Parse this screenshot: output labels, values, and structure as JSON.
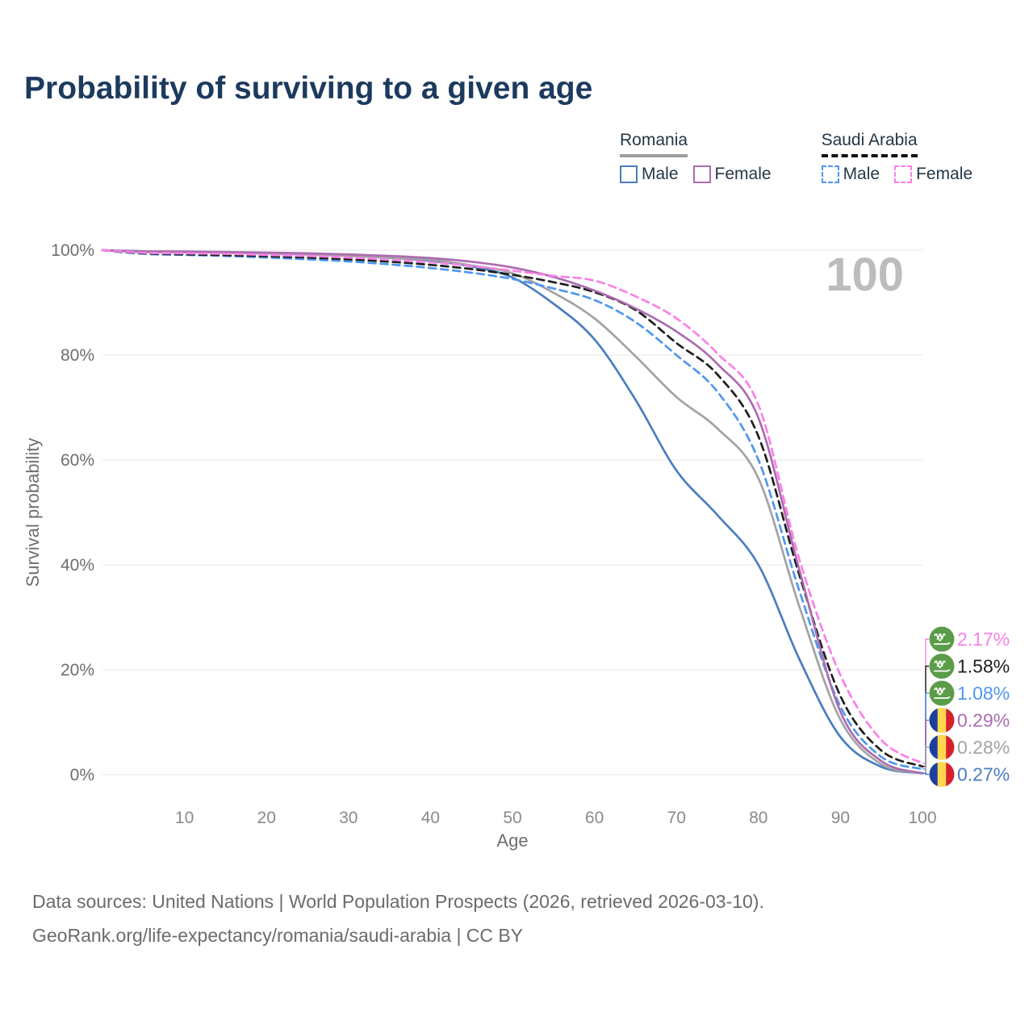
{
  "title": "Probability of surviving to a given age",
  "legend": {
    "groups": [
      {
        "name": "Romania",
        "style": "solid",
        "items": [
          {
            "label": "Male",
            "color": "#4a7dc0"
          },
          {
            "label": "Female",
            "color": "#ab6cb0"
          }
        ]
      },
      {
        "name": "Saudi Arabia",
        "style": "dashed",
        "items": [
          {
            "label": "Male",
            "color": "#4f97ef"
          },
          {
            "label": "Female",
            "color": "#fb80e8"
          }
        ]
      }
    ]
  },
  "watermark": "100",
  "flags": {
    "sa_green": "#5b9c48",
    "ro_blue": "#1b3f9e",
    "ro_yellow": "#ffd84d",
    "ro_red": "#d6202c"
  },
  "chart_data": {
    "type": "line",
    "title": "Probability of surviving to a given age",
    "xlabel": "Age",
    "ylabel": "Survival probability",
    "xlim": [
      0,
      100
    ],
    "ylim": [
      0,
      100
    ],
    "grid": "horizontal",
    "x_ticks": [
      10,
      20,
      30,
      40,
      50,
      60,
      70,
      80,
      90,
      100
    ],
    "y_ticks": [
      {
        "v": 0,
        "label": "0%"
      },
      {
        "v": 20,
        "label": "20%"
      },
      {
        "v": 40,
        "label": "40%"
      },
      {
        "v": 60,
        "label": "60%"
      },
      {
        "v": 80,
        "label": "80%"
      },
      {
        "v": 100,
        "label": "100%"
      }
    ],
    "x": [
      0,
      5,
      10,
      15,
      20,
      25,
      30,
      35,
      40,
      45,
      50,
      55,
      60,
      65,
      70,
      75,
      80,
      85,
      90,
      95,
      100
    ],
    "series": [
      {
        "name": "Romania Male",
        "country": "Romania",
        "sex": "Male",
        "flag": "ro",
        "color": "#4a7dc0",
        "dash": "solid",
        "end_label": "0.27%",
        "values": [
          100,
          99.7,
          99.65,
          99.55,
          99.4,
          99.2,
          98.95,
          98.55,
          98.0,
          96.9,
          94.8,
          89.8,
          83.0,
          71.5,
          58.0,
          49.5,
          40.0,
          22.0,
          7.2,
          1.5,
          0.27
        ]
      },
      {
        "name": "Romania (both sexes)",
        "country": "Romania",
        "sex": "Both",
        "flag": "ro",
        "color": "#a3a3a3",
        "dash": "solid",
        "end_label": "0.28%",
        "values": [
          100,
          99.65,
          99.6,
          99.5,
          99.35,
          99.15,
          98.9,
          98.55,
          98.2,
          97.1,
          95.6,
          91.9,
          87.0,
          79.8,
          72.0,
          66.0,
          56.5,
          32.0,
          10.5,
          2.0,
          0.28
        ]
      },
      {
        "name": "Saudi Arabia Male",
        "country": "Saudi Arabia",
        "sex": "Male",
        "flag": "sa",
        "color": "#4f97ef",
        "dash": "dashed",
        "end_label": "1.08%",
        "values": [
          100,
          99.3,
          99.1,
          98.9,
          98.6,
          98.25,
          97.85,
          97.3,
          96.6,
          95.7,
          94.5,
          92.7,
          90.5,
          86.3,
          80.0,
          73.0,
          60.0,
          35.0,
          13.0,
          3.4,
          1.08
        ]
      },
      {
        "name": "Saudi Arabia (both sexes)",
        "country": "Saudi Arabia",
        "sex": "Both",
        "flag": "sa",
        "color": "#1f1f1f",
        "dash": "dashed",
        "end_label": "1.58%",
        "values": [
          100,
          99.4,
          99.2,
          99.05,
          98.85,
          98.6,
          98.25,
          97.8,
          97.2,
          96.4,
          95.3,
          93.9,
          92.0,
          88.6,
          82.3,
          76.3,
          64.5,
          38.0,
          15.0,
          4.6,
          1.58
        ]
      },
      {
        "name": "Romania Female",
        "country": "Romania",
        "sex": "Female",
        "flag": "ro",
        "color": "#ab6cb0",
        "dash": "solid",
        "end_label": "0.29%",
        "values": [
          100,
          99.8,
          99.75,
          99.65,
          99.55,
          99.4,
          99.2,
          98.9,
          98.5,
          97.8,
          96.7,
          94.9,
          92.3,
          88.9,
          84.5,
          78.3,
          68.0,
          39.0,
          12.0,
          2.6,
          0.29
        ]
      },
      {
        "name": "Saudi Arabia Female",
        "country": "Saudi Arabia",
        "sex": "Female",
        "flag": "sa",
        "color": "#fb80e8",
        "dash": "dashed",
        "end_label": "2.17%",
        "values": [
          100,
          99.5,
          99.4,
          99.3,
          99.1,
          98.9,
          98.6,
          98.2,
          97.7,
          97.0,
          96.1,
          95.1,
          94.2,
          91.2,
          87.0,
          80.3,
          70.5,
          41.0,
          19.0,
          6.6,
          2.17
        ]
      }
    ]
  },
  "footer": {
    "line1": "Data sources: United Nations | World Population Prospects (2026, retrieved 2026-03-10).",
    "line2": "GeoRank.org/life-expectancy/romania/saudi-arabia | CC BY"
  }
}
